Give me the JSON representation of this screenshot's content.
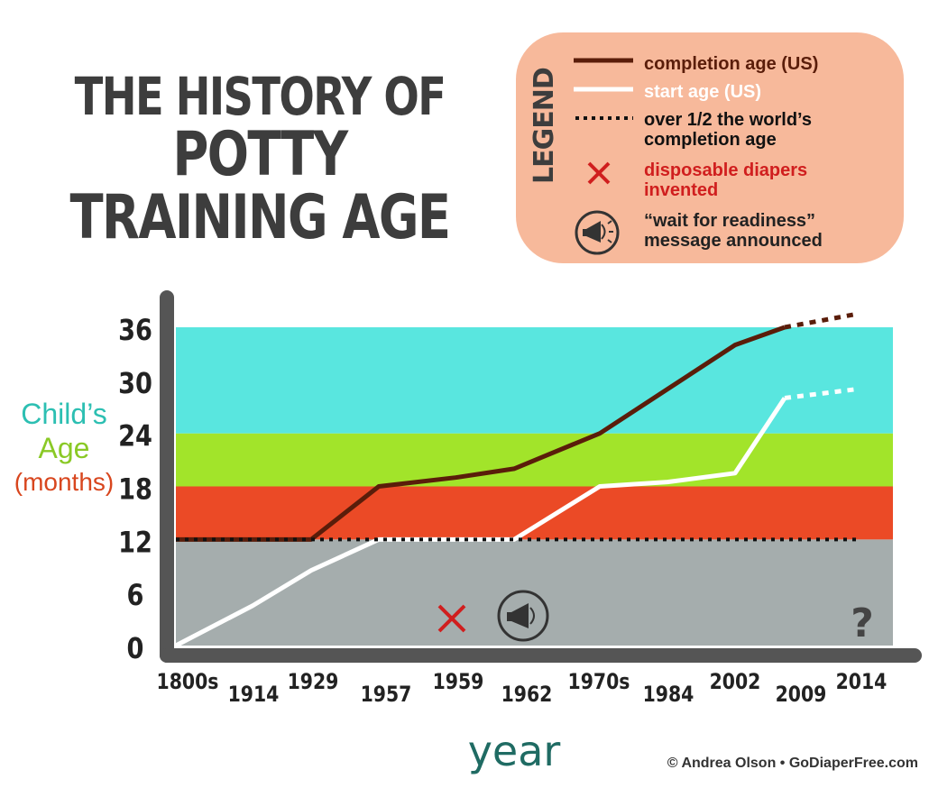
{
  "title": {
    "line1": "THE HISTORY OF",
    "line2": "POTTY TRAINING AGE"
  },
  "legend": {
    "title": "LEGEND",
    "items": [
      {
        "key": "completion",
        "text": "completion age (US)",
        "color": "#5a1d0a"
      },
      {
        "key": "start",
        "text": "start age (US)",
        "color": "#ffffff"
      },
      {
        "key": "world",
        "text": "over 1/2 the world’s completion age",
        "color": "#111111"
      },
      {
        "key": "diapers",
        "text": "disposable diapers invented",
        "color": "#d01e1e"
      },
      {
        "key": "readiness",
        "text": "“wait for readiness” message announced",
        "color": "#111111"
      }
    ]
  },
  "ylabel": {
    "line1": "Child’s",
    "line2": "Age",
    "line3": "(months)"
  },
  "xlabel": "year",
  "credit": "© Andrea Olson • GoDiaperFree.com",
  "question_mark": "?",
  "colors": {
    "band_under12": "#a5adad",
    "band_12_18": "#eb4a26",
    "band_18_24": "#a2e42a",
    "band_24_36": "#59e6df",
    "completion_line": "#5a1d0a",
    "start_line": "#ffffff",
    "axis": "#555555",
    "diaper_x": "#d01e1e"
  },
  "chart_data": {
    "type": "line",
    "categories": [
      "1800s",
      "1914",
      "1929",
      "1957",
      "1959",
      "1962",
      "1970s",
      "1984",
      "2002",
      "2009",
      "2014"
    ],
    "y_ticks": [
      0,
      6,
      12,
      18,
      24,
      30,
      36
    ],
    "ylim": [
      0,
      36
    ],
    "bands": [
      {
        "from": 0,
        "to": 12
      },
      {
        "from": 12,
        "to": 18
      },
      {
        "from": 18,
        "to": 24
      },
      {
        "from": 24,
        "to": 36
      }
    ],
    "series": [
      {
        "name": "completion age (US)",
        "values": [
          12,
          12,
          12,
          18,
          19,
          20,
          24,
          29,
          34,
          36,
          37.5
        ],
        "dotted_from_index": 9
      },
      {
        "name": "start age (US)",
        "values": [
          0,
          4.5,
          8.5,
          12,
          12,
          12,
          18,
          18.5,
          19.5,
          28,
          29
        ],
        "dotted_from_index": 9
      },
      {
        "name": "over 1/2 the world’s completion age",
        "values": [
          12,
          12,
          12,
          12,
          12,
          12,
          12,
          12,
          12,
          12,
          12
        ]
      }
    ],
    "annotations": [
      {
        "type": "disposable diapers invented",
        "x": "1959"
      },
      {
        "type": "“wait for readiness” message announced",
        "x": "1962"
      },
      {
        "type": "question",
        "x": "2014",
        "text": "?"
      }
    ],
    "grid": false
  }
}
